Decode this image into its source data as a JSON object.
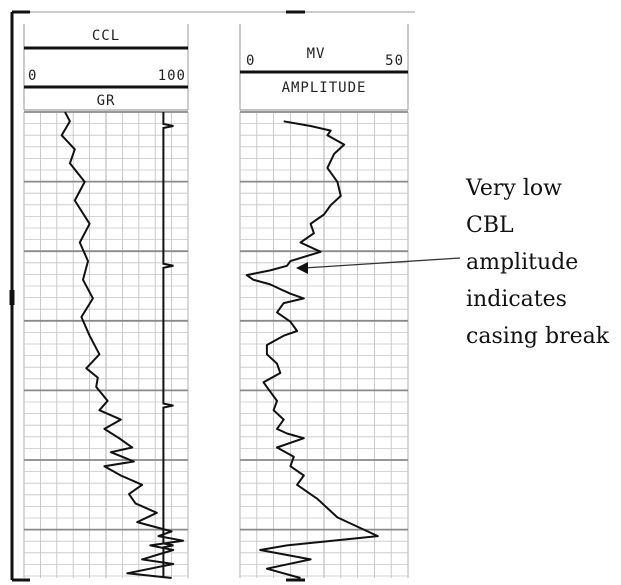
{
  "tracks": {
    "left": {
      "top_label": "CCL",
      "scale_min": "0",
      "scale_max": "100",
      "curve_label": "GR"
    },
    "right": {
      "scale_min": "0",
      "unit": "MV",
      "scale_max": "50",
      "curve_label": "AMPLITUDE"
    }
  },
  "annotation": {
    "lines": [
      "Very low",
      "CBL",
      "amplitude",
      "indicates",
      "casing break"
    ]
  },
  "chart_data": [
    {
      "type": "line",
      "name": "GR",
      "track": "left",
      "xlim": [
        0,
        100
      ],
      "x_points": [
        25,
        28,
        23,
        31,
        28,
        37,
        31,
        40,
        34,
        39,
        36,
        42,
        35,
        40,
        46,
        38,
        45,
        44,
        51,
        46,
        59,
        49,
        58,
        66,
        53,
        67,
        49,
        59,
        72,
        64,
        68,
        81,
        69,
        90,
        82,
        97,
        77,
        91,
        72,
        91,
        63,
        90
      ],
      "y_fraction": [
        0,
        0.02,
        0.05,
        0.08,
        0.11,
        0.15,
        0.19,
        0.24,
        0.28,
        0.32,
        0.36,
        0.4,
        0.44,
        0.48,
        0.52,
        0.55,
        0.57,
        0.59,
        0.62,
        0.64,
        0.66,
        0.68,
        0.7,
        0.72,
        0.73,
        0.75,
        0.76,
        0.78,
        0.8,
        0.82,
        0.84,
        0.86,
        0.88,
        0.9,
        0.91,
        0.92,
        0.93,
        0.94,
        0.96,
        0.97,
        0.99,
        1.0
      ]
    },
    {
      "type": "line",
      "name": "CCL",
      "track": "left",
      "baseline_x": 85,
      "spike_y_fraction": [
        0.03,
        0.33,
        0.63,
        0.93
      ]
    },
    {
      "type": "line",
      "name": "AMPLITUDE",
      "track": "right",
      "xlim": [
        0,
        50
      ],
      "x_points": [
        13,
        21,
        27,
        26,
        31,
        28,
        26,
        29,
        30,
        27,
        25,
        21,
        22,
        18,
        24,
        15,
        14,
        9,
        2,
        4,
        9,
        12,
        15,
        19,
        13,
        11,
        15,
        17,
        13,
        8,
        8,
        11,
        12,
        7,
        9,
        11,
        10,
        13,
        11,
        14,
        19,
        11,
        16,
        15,
        19,
        17,
        23,
        29,
        41,
        14,
        6,
        21,
        8,
        18
      ],
      "y_fraction": [
        0.02,
        0.03,
        0.04,
        0.05,
        0.07,
        0.09,
        0.12,
        0.15,
        0.18,
        0.2,
        0.22,
        0.24,
        0.26,
        0.28,
        0.3,
        0.32,
        0.33,
        0.34,
        0.35,
        0.36,
        0.37,
        0.38,
        0.39,
        0.4,
        0.41,
        0.43,
        0.45,
        0.47,
        0.48,
        0.5,
        0.52,
        0.54,
        0.56,
        0.58,
        0.6,
        0.62,
        0.64,
        0.66,
        0.68,
        0.69,
        0.7,
        0.72,
        0.74,
        0.76,
        0.78,
        0.8,
        0.83,
        0.87,
        0.91,
        0.93,
        0.94,
        0.96,
        0.98,
        1.0
      ]
    }
  ]
}
